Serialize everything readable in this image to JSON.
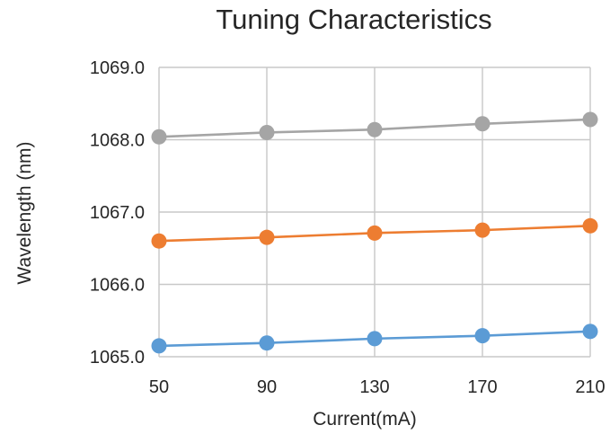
{
  "chart_data": {
    "type": "line",
    "title": "Tuning Characteristics",
    "xlabel": "Current(mA)",
    "ylabel": "Wavelength (nm)",
    "x": [
      50,
      90,
      130,
      170,
      210
    ],
    "xticks": [
      "50",
      "90",
      "130",
      "170",
      "210"
    ],
    "yticks": [
      "1065.0",
      "1066.0",
      "1067.0",
      "1068.0",
      "1069.0"
    ],
    "xlim": [
      50,
      210
    ],
    "ylim": [
      1065.0,
      1069.0
    ],
    "grid": true,
    "legend": "none",
    "series": [
      {
        "color": "#5b9bd5",
        "values": [
          1065.15,
          1065.19,
          1065.25,
          1065.29,
          1065.35
        ]
      },
      {
        "color": "#ed7d31",
        "values": [
          1066.6,
          1066.65,
          1066.71,
          1066.75,
          1066.81
        ]
      },
      {
        "color": "#a5a5a5",
        "values": [
          1068.04,
          1068.1,
          1068.14,
          1068.22,
          1068.28
        ]
      }
    ]
  }
}
